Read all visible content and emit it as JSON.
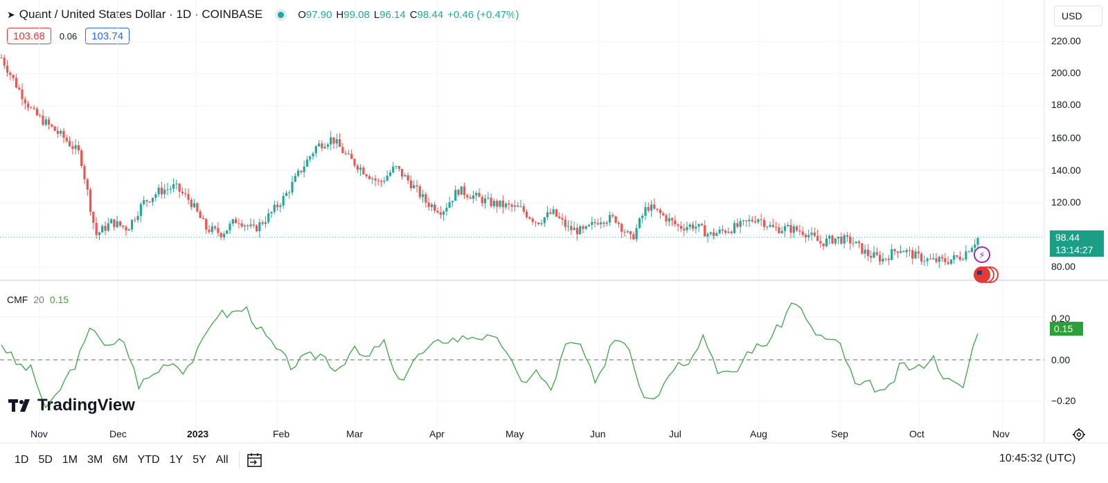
{
  "header": {
    "title": "Quant / United States Dollar · 1D · COINBASE",
    "ohlc": [
      {
        "k": "O",
        "v": "97.90"
      },
      {
        "k": "H",
        "v": "99.08"
      },
      {
        "k": "L",
        "v": "96.14"
      },
      {
        "k": "C",
        "v": "98.44"
      }
    ],
    "change": "+0.46 (+0.47%)",
    "sell": "103.68",
    "spread": "0.06",
    "buy": "103.74"
  },
  "currency": "USD",
  "price_axis": [
    "220.00",
    "200.00",
    "180.00",
    "160.00",
    "140.00",
    "120.00",
    "80.00"
  ],
  "last_price": "98.44",
  "countdown": "13:14:27",
  "indicator": {
    "name": "CMF",
    "length": "20",
    "value": "0.15"
  },
  "cmf_axis": [
    "0.20",
    "0.00",
    "−0.20"
  ],
  "x_axis": [
    "Nov",
    "Dec",
    "2023",
    "Feb",
    "Mar",
    "Apr",
    "May",
    "Jun",
    "Jul",
    "Aug",
    "Sep",
    "Oct",
    "Nov"
  ],
  "brand": "TradingView",
  "timeframes": [
    "1D",
    "5D",
    "1M",
    "3M",
    "6M",
    "YTD",
    "1Y",
    "5Y",
    "All"
  ],
  "clock": "10:45:32 (UTC)",
  "colors": {
    "up": "#26a69a",
    "down": "#ef5350",
    "cmf": "#43a047",
    "accent": "#2962ff"
  },
  "chart_data": [
    {
      "type": "candlestick",
      "title": "Quant / United States Dollar · 1D · COINBASE",
      "ylim": [
        75,
        225
      ],
      "x": [
        "Nov",
        "Dec",
        "2023",
        "Feb",
        "Mar",
        "Apr",
        "May",
        "Jun",
        "Jul",
        "Aug",
        "Sep",
        "Oct",
        "Nov"
      ],
      "close_path": [
        210,
        192,
        176,
        168,
        160,
        150,
        100,
        108,
        104,
        120,
        127,
        130,
        121,
        104,
        101,
        110,
        103,
        112,
        124,
        140,
        155,
        160,
        148,
        140,
        132,
        142,
        132,
        120,
        115,
        128,
        124,
        120,
        118,
        116,
        108,
        114,
        104,
        102,
        110,
        110,
        97,
        118,
        112,
        105,
        106,
        100,
        103,
        106,
        111,
        104,
        104,
        102,
        95,
        98,
        96,
        88,
        85,
        92,
        87,
        84,
        84,
        87,
        98
      ]
    },
    {
      "type": "line",
      "title": "CMF",
      "ylim": [
        -0.33,
        0.3
      ],
      "series": [
        {
          "name": "CMF",
          "values": [
            0.08,
            -0.02,
            -0.05,
            -0.25,
            -0.12,
            0.0,
            0.17,
            0.05,
            0.1,
            -0.12,
            -0.07,
            0.0,
            -0.05,
            0.05,
            0.22,
            0.22,
            0.25,
            0.14,
            0.05,
            -0.03,
            0.01,
            0.03,
            -0.05,
            0.05,
            0.0,
            0.1,
            -0.12,
            0.0,
            0.05,
            0.1,
            0.1,
            0.12,
            0.1,
            0.07,
            -0.12,
            -0.05,
            -0.15,
            0.07,
            0.07,
            -0.14,
            0.1,
            0.1,
            -0.16,
            -0.17,
            -0.03,
            0.0,
            0.12,
            -0.05,
            -0.08,
            0.05,
            0.07,
            0.16,
            0.3,
            0.15,
            0.1,
            0.07,
            -0.13,
            -0.12,
            -0.17,
            -0.02,
            -0.05,
            0.02,
            -0.1,
            -0.14,
            0.15
          ]
        }
      ]
    }
  ]
}
